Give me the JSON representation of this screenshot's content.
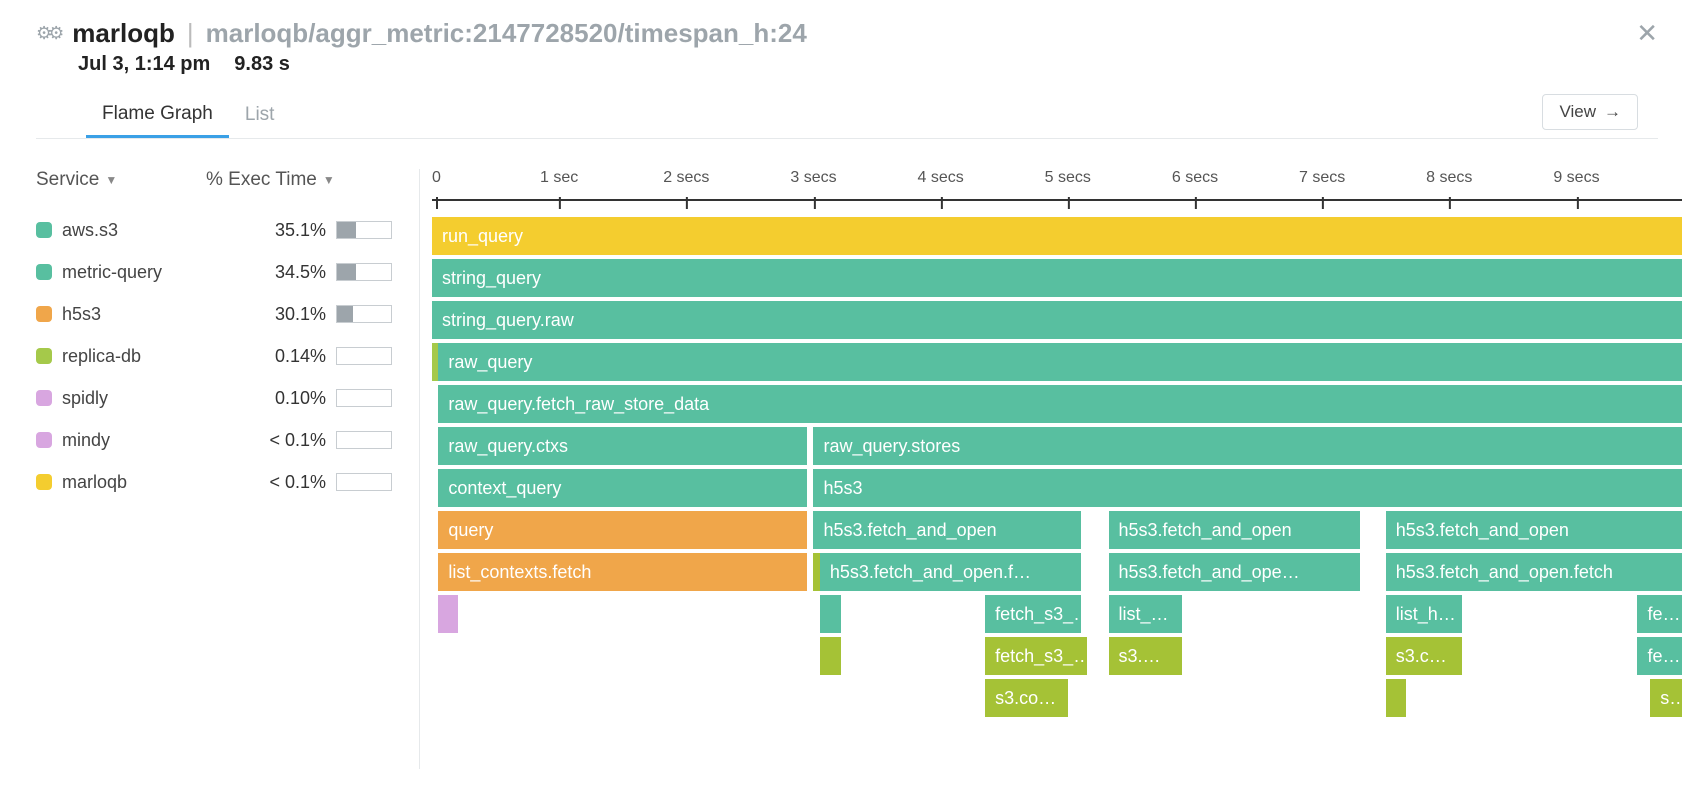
{
  "header": {
    "service_name": "marloqb",
    "path": "marloqb/aggr_metric:2147728520/timespan_h:24",
    "timestamp": "Jul 3, 1:14 pm",
    "duration": "9.83 s"
  },
  "tabs": {
    "flame": "Flame Graph",
    "list": "List",
    "view_button": "View"
  },
  "sidebar": {
    "col_service": "Service",
    "col_exec": "% Exec Time",
    "services": [
      {
        "name": "aws.s3",
        "pct": "35.1%",
        "bar_pct": 35.1,
        "color": "#58bfa0"
      },
      {
        "name": "metric-query",
        "pct": "34.5%",
        "bar_pct": 34.5,
        "color": "#58bfa0"
      },
      {
        "name": "h5s3",
        "pct": "30.1%",
        "bar_pct": 30.1,
        "color": "#f0a64a"
      },
      {
        "name": "replica-db",
        "pct": "0.14%",
        "bar_pct": 0.14,
        "color": "#a5c94a"
      },
      {
        "name": "spidly",
        "pct": "0.10%",
        "bar_pct": 0.1,
        "color": "#d8a6e0"
      },
      {
        "name": "mindy",
        "pct": "< 0.1%",
        "bar_pct": 0.05,
        "color": "#d8a6e0"
      },
      {
        "name": "marloqb",
        "pct": "< 0.1%",
        "bar_pct": 0.05,
        "color": "#f4cd2f"
      }
    ]
  },
  "colors": {
    "yellow": "#f4cd2f",
    "teal": "#58bfa0",
    "teal_text": "#ffffff",
    "orange": "#f0a64a",
    "olive": "#a5c236",
    "lime_edge": "#a5c94a",
    "pink_edge": "#d8a6e0"
  },
  "axis": {
    "max_sec": 9.83,
    "ticks": [
      "0",
      "1 sec",
      "2 secs",
      "3 secs",
      "4 secs",
      "5 secs",
      "6 secs",
      "7 secs",
      "8 secs",
      "9 secs"
    ]
  },
  "flame": {
    "rows": [
      [
        {
          "label": "run_query",
          "start": 0.0,
          "end": 9.83,
          "color": "yellow"
        }
      ],
      [
        {
          "label": "string_query",
          "start": 0.0,
          "end": 9.83,
          "color": "teal"
        }
      ],
      [
        {
          "label": "string_query.raw",
          "start": 0.0,
          "end": 9.83,
          "color": "teal"
        }
      ],
      [
        {
          "label": "",
          "start": 0.0,
          "end": 0.05,
          "color": "lime_edge"
        },
        {
          "label": "raw_query",
          "start": 0.05,
          "end": 9.83,
          "color": "teal"
        }
      ],
      [
        {
          "label": "raw_query.fetch_raw_store_data",
          "start": 0.05,
          "end": 9.83,
          "color": "teal"
        }
      ],
      [
        {
          "label": "raw_query.ctxs",
          "start": 0.05,
          "end": 2.95,
          "color": "teal"
        },
        {
          "label": "raw_query.stores",
          "start": 3.0,
          "end": 9.83,
          "color": "teal"
        }
      ],
      [
        {
          "label": "context_query",
          "start": 0.05,
          "end": 2.95,
          "color": "teal"
        },
        {
          "label": "h5s3",
          "start": 3.0,
          "end": 9.83,
          "color": "teal"
        }
      ],
      [
        {
          "label": "query",
          "start": 0.05,
          "end": 2.95,
          "color": "orange"
        },
        {
          "label": "h5s3.fetch_and_open",
          "start": 3.0,
          "end": 5.1,
          "color": "teal"
        },
        {
          "label": "h5s3.fetch_and_open",
          "start": 5.32,
          "end": 7.3,
          "color": "teal"
        },
        {
          "label": "h5s3.fetch_and_open",
          "start": 7.5,
          "end": 9.83,
          "color": "teal"
        }
      ],
      [
        {
          "label": "list_contexts.fetch",
          "start": 0.05,
          "end": 2.95,
          "color": "orange"
        },
        {
          "label": "",
          "start": 3.0,
          "end": 3.05,
          "color": "olive"
        },
        {
          "label": "h5s3.fetch_and_open.f…",
          "start": 3.05,
          "end": 5.1,
          "color": "teal"
        },
        {
          "label": "h5s3.fetch_and_ope…",
          "start": 5.32,
          "end": 7.3,
          "color": "teal"
        },
        {
          "label": "h5s3.fetch_and_open.fetch",
          "start": 7.5,
          "end": 9.83,
          "color": "teal"
        }
      ],
      [
        {
          "label": "",
          "start": 0.05,
          "end": 0.1,
          "color": "pink_edge"
        },
        {
          "label": "",
          "start": 3.05,
          "end": 3.22,
          "color": "teal"
        },
        {
          "label": "fetch_s3_…",
          "start": 4.35,
          "end": 5.1,
          "color": "teal"
        },
        {
          "label": "list_…",
          "start": 5.32,
          "end": 5.9,
          "color": "teal"
        },
        {
          "label": "list_h…",
          "start": 7.5,
          "end": 8.1,
          "color": "teal"
        },
        {
          "label": "fe…",
          "start": 9.48,
          "end": 9.83,
          "color": "teal"
        }
      ],
      [
        {
          "label": "",
          "start": 3.05,
          "end": 3.22,
          "color": "olive"
        },
        {
          "label": "fetch_s3_…",
          "start": 4.35,
          "end": 5.15,
          "color": "olive"
        },
        {
          "label": "s3.…",
          "start": 5.32,
          "end": 5.9,
          "color": "olive"
        },
        {
          "label": "s3.c…",
          "start": 7.5,
          "end": 8.1,
          "color": "olive"
        },
        {
          "label": "fe…",
          "start": 9.48,
          "end": 9.83,
          "color": "teal"
        }
      ],
      [
        {
          "label": "s3.co…",
          "start": 4.35,
          "end": 5.0,
          "color": "olive"
        },
        {
          "label": "",
          "start": 7.5,
          "end": 7.58,
          "color": "olive"
        },
        {
          "label": "s…",
          "start": 9.58,
          "end": 9.83,
          "color": "olive"
        }
      ]
    ]
  }
}
